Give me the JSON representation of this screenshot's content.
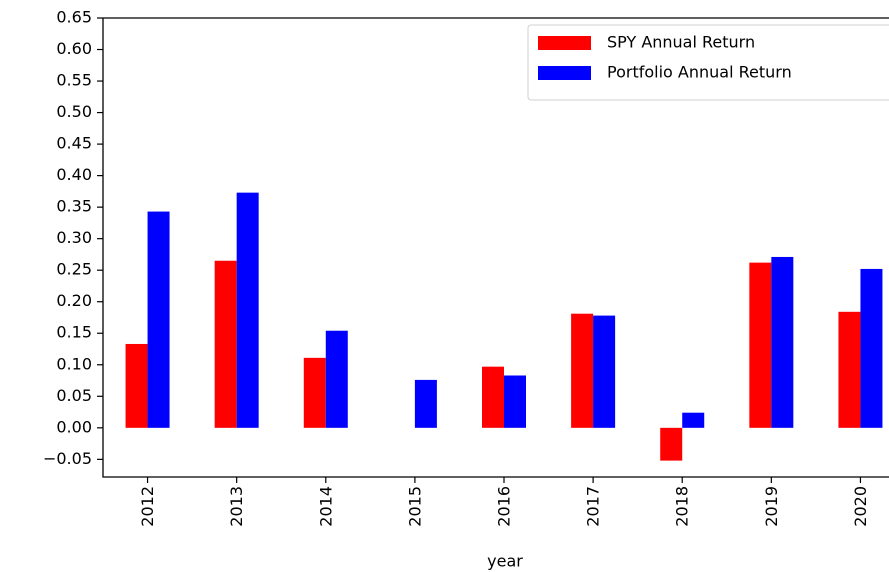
{
  "chart_data": {
    "type": "bar",
    "x_label": "year",
    "categories": [
      "2012",
      "2013",
      "2014",
      "2015",
      "2016",
      "2017",
      "2018",
      "2019",
      "2020"
    ],
    "series": [
      {
        "name": "SPY Annual Return",
        "color": "#ff0000",
        "values": [
          0.133,
          0.265,
          0.111,
          null,
          0.097,
          0.181,
          -0.052,
          0.262,
          0.184
        ]
      },
      {
        "name": "Portfolio Annual Return",
        "color": "#0000ff",
        "values": [
          0.343,
          0.373,
          0.154,
          0.076,
          0.083,
          0.178,
          0.024,
          0.271,
          0.252
        ]
      }
    ],
    "ylim": [
      -0.078,
      0.65
    ],
    "yticks": [
      {
        "value": -0.05,
        "label": "−0.05"
      },
      {
        "value": 0,
        "label": "0.00"
      },
      0.05,
      {
        "value": 0.1,
        "label": "0.10"
      },
      0.15,
      {
        "value": 0.2,
        "label": "0.20"
      },
      0.25,
      {
        "value": 0.3,
        "label": "0.30"
      },
      0.35,
      {
        "value": 0.4,
        "label": "0.40"
      },
      0.45,
      {
        "value": 0.5,
        "label": "0.50"
      },
      0.55,
      {
        "value": 0.6,
        "label": "0.60"
      },
      0.65
    ],
    "legend": "upper right",
    "grid": false
  }
}
